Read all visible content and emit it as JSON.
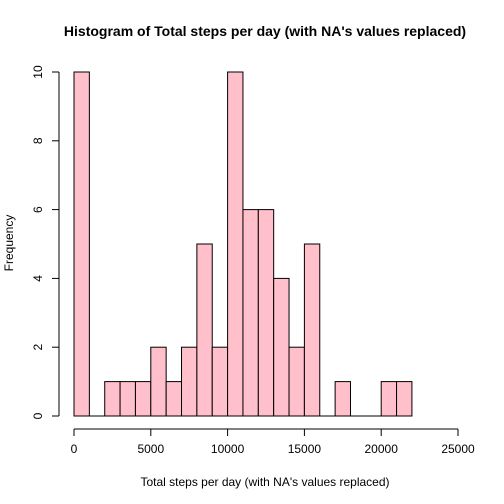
{
  "chart_data": {
    "type": "bar",
    "title": "Histogram of Total steps per day (with NA's values replaced)",
    "xlabel": "Total steps per day (with NA's values replaced)",
    "ylabel": "Frequency",
    "bin_width": 1000,
    "bins": [
      {
        "start": 0,
        "end": 1000,
        "count": 10
      },
      {
        "start": 1000,
        "end": 2000,
        "count": 0
      },
      {
        "start": 2000,
        "end": 3000,
        "count": 1
      },
      {
        "start": 3000,
        "end": 4000,
        "count": 1
      },
      {
        "start": 4000,
        "end": 5000,
        "count": 1
      },
      {
        "start": 5000,
        "end": 6000,
        "count": 2
      },
      {
        "start": 6000,
        "end": 7000,
        "count": 1
      },
      {
        "start": 7000,
        "end": 8000,
        "count": 2
      },
      {
        "start": 8000,
        "end": 9000,
        "count": 5
      },
      {
        "start": 9000,
        "end": 10000,
        "count": 2
      },
      {
        "start": 10000,
        "end": 11000,
        "count": 10
      },
      {
        "start": 11000,
        "end": 12000,
        "count": 6
      },
      {
        "start": 12000,
        "end": 13000,
        "count": 6
      },
      {
        "start": 13000,
        "end": 14000,
        "count": 4
      },
      {
        "start": 14000,
        "end": 15000,
        "count": 2
      },
      {
        "start": 15000,
        "end": 16000,
        "count": 5
      },
      {
        "start": 16000,
        "end": 17000,
        "count": 0
      },
      {
        "start": 17000,
        "end": 18000,
        "count": 1
      },
      {
        "start": 18000,
        "end": 19000,
        "count": 0
      },
      {
        "start": 19000,
        "end": 20000,
        "count": 0
      },
      {
        "start": 20000,
        "end": 21000,
        "count": 1
      },
      {
        "start": 21000,
        "end": 22000,
        "count": 1
      }
    ],
    "xlim": [
      0,
      25000
    ],
    "ylim": [
      0,
      10
    ],
    "x_ticks": [
      0,
      5000,
      10000,
      15000,
      20000,
      25000
    ],
    "y_ticks": [
      0,
      2,
      4,
      6,
      8,
      10
    ],
    "bar_color": "#ffc0cb",
    "grid": false,
    "legend": "none"
  }
}
